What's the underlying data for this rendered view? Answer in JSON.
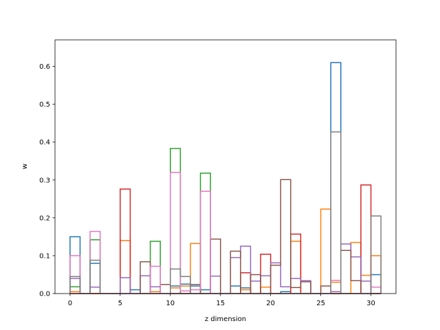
{
  "chart_data": {
    "type": "bar",
    "style": "step-histogram",
    "title": "",
    "xlabel": "z dimension",
    "ylabel": "w",
    "xlim": [
      -1.5,
      32.5
    ],
    "ylim": [
      0,
      0.67
    ],
    "xticks": [
      0,
      5,
      10,
      15,
      20,
      25,
      30
    ],
    "yticks": [
      0.0,
      0.1,
      0.2,
      0.3,
      0.4,
      0.5,
      0.6
    ],
    "ytick_labels": [
      "0.0",
      "0.1",
      "0.2",
      "0.3",
      "0.4",
      "0.5",
      "0.6"
    ],
    "bin_edges": [
      0,
      1,
      2,
      3,
      4,
      5,
      6,
      7,
      8,
      9,
      10,
      11,
      12,
      13,
      14,
      15,
      16,
      17,
      18,
      19,
      20,
      21,
      22,
      23,
      24,
      25,
      26,
      27,
      28,
      29,
      30,
      31
    ],
    "grid": false,
    "legend": "none",
    "series": [
      {
        "color": "#1f77b4",
        "values": [
          0.15,
          0.0,
          0.08,
          0.0,
          0.0,
          0.0,
          0.01,
          0.0,
          0.0,
          0.0,
          0.02,
          0.025,
          0.02,
          0.01,
          0.0,
          0.0,
          0.02,
          0.015,
          0.0,
          0.0,
          0.0,
          0.005,
          0.0,
          0.0,
          0.0,
          0.0,
          0.61,
          0.0,
          0.0,
          0.0,
          0.05
        ]
      },
      {
        "color": "#ff7f0e",
        "values": [
          0.005,
          0.0,
          0.0,
          0.0,
          0.0,
          0.14,
          0.0,
          0.0,
          0.005,
          0.0,
          0.015,
          0.02,
          0.132,
          0.0,
          0.0,
          0.0,
          0.0,
          0.01,
          0.0,
          0.017,
          0.0,
          0.0,
          0.138,
          0.0,
          0.0,
          0.223,
          0.03,
          0.0,
          0.135,
          0.048,
          0.1
        ]
      },
      {
        "color": "#2ca02c",
        "values": [
          0.018,
          0.0,
          0.142,
          0.0,
          0.0,
          0.0,
          0.0,
          0.0,
          0.138,
          0.0,
          0.383,
          0.0,
          0.0,
          0.318,
          0.0,
          0.0,
          0.0,
          0.0,
          0.0,
          0.0,
          0.0,
          0.0,
          0.0,
          0.0,
          0.0,
          0.0,
          0.0,
          0.0,
          0.0,
          0.0,
          0.0
        ]
      },
      {
        "color": "#d62728",
        "values": [
          0.0,
          0.0,
          0.0,
          0.0,
          0.0,
          0.276,
          0.0,
          0.0,
          0.0,
          0.0,
          0.0,
          0.0,
          0.0,
          0.0,
          0.0,
          0.0,
          0.0,
          0.055,
          0.0,
          0.104,
          0.0,
          0.0,
          0.157,
          0.0,
          0.0,
          0.0,
          0.0,
          0.0,
          0.0,
          0.287,
          0.0
        ]
      },
      {
        "color": "#9467bd",
        "values": [
          0.04,
          0.0,
          0.017,
          0.0,
          0.0,
          0.042,
          0.0,
          0.047,
          0.018,
          0.0,
          0.0,
          0.0,
          0.0,
          0.0,
          0.046,
          0.0,
          0.095,
          0.125,
          0.033,
          0.047,
          0.081,
          0.018,
          0.04,
          0.034,
          0.0,
          0.0,
          0.005,
          0.131,
          0.097,
          0.033,
          0.0
        ]
      },
      {
        "color": "#8c564b",
        "values": [
          0.0,
          0.0,
          0.0,
          0.0,
          0.0,
          0.0,
          0.0,
          0.084,
          0.0,
          0.024,
          0.0,
          0.0,
          0.024,
          0.0,
          0.144,
          0.0,
          0.112,
          0.0,
          0.05,
          0.0,
          0.075,
          0.301,
          0.016,
          0.031,
          0.0,
          0.02,
          0.0,
          0.114,
          0.034,
          0.0,
          0.0
        ]
      },
      {
        "color": "#e377c2",
        "values": [
          0.1,
          0.0,
          0.164,
          0.0,
          0.0,
          0.0,
          0.0,
          0.0,
          0.072,
          0.0,
          0.32,
          0.007,
          0.01,
          0.27,
          0.0,
          0.0,
          0.0,
          0.0,
          0.0,
          0.0,
          0.0,
          0.0,
          0.0,
          0.0,
          0.0,
          0.0,
          0.035,
          0.0,
          0.0,
          0.0,
          0.017
        ]
      },
      {
        "color": "#7f7f7f",
        "values": [
          0.045,
          0.0,
          0.088,
          0.0,
          0.0,
          0.0,
          0.0,
          0.0,
          0.0,
          0.0,
          0.065,
          0.045,
          0.0,
          0.0,
          0.0,
          0.0,
          0.0,
          0.0,
          0.0,
          0.0,
          0.0,
          0.0,
          0.0,
          0.0,
          0.0,
          0.0,
          0.427,
          0.0,
          0.0,
          0.0,
          0.205
        ]
      }
    ]
  }
}
